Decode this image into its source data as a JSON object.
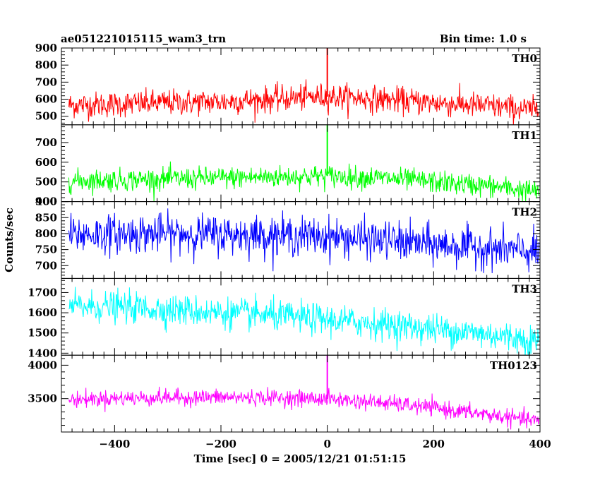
{
  "header": {
    "title": "ae051221015115_wam3_trn",
    "bin_time": "Bin time: 1.0 s"
  },
  "axes": {
    "xlabel": "Time [sec] 0 = 2005/12/21 01:51:15",
    "ylabel": "Counts/sec"
  },
  "colors": {
    "TH0": "#ff0000",
    "TH1": "#00ff00",
    "TH2": "#0000ff",
    "TH3": "#00ffff",
    "TH0123": "#ff00ff",
    "frame": "#000000"
  },
  "chart_data": {
    "type": "line",
    "shared_x": {
      "label": "Time [sec] 0 = 2005/12/21 01:51:15",
      "range": [
        -500,
        400
      ],
      "ticks": [
        -400,
        -200,
        0,
        200,
        400
      ],
      "tick_labels": [
        "−400",
        "−200",
        "0",
        "200",
        "400"
      ],
      "bin_seconds": 1.0
    },
    "panels": [
      {
        "name": "TH0",
        "ylim": [
          450,
          900
        ],
        "yticks": [
          500,
          600,
          700,
          800,
          900
        ],
        "trend": [
          [
            -500,
            565
          ],
          [
            -400,
            570
          ],
          [
            -300,
            580
          ],
          [
            -200,
            585
          ],
          [
            -100,
            600
          ],
          [
            -50,
            610
          ],
          [
            0,
            615
          ],
          [
            50,
            610
          ],
          [
            100,
            600
          ],
          [
            200,
            580
          ],
          [
            300,
            560
          ],
          [
            400,
            535
          ]
        ],
        "noise_std": 38,
        "spike": {
          "x": 0,
          "y": 900
        }
      },
      {
        "name": "TH1",
        "ylim": [
          400,
          790
        ],
        "yticks": [
          400,
          500,
          600,
          700
        ],
        "trend": [
          [
            -500,
            505
          ],
          [
            -400,
            510
          ],
          [
            -300,
            515
          ],
          [
            -200,
            520
          ],
          [
            -100,
            525
          ],
          [
            0,
            530
          ],
          [
            100,
            520
          ],
          [
            200,
            500
          ],
          [
            300,
            480
          ],
          [
            400,
            450
          ]
        ],
        "noise_std": 28,
        "spike": {
          "x": 0,
          "y": 790
        }
      },
      {
        "name": "TH2",
        "ylim": [
          660,
          900
        ],
        "yticks": [
          700,
          750,
          800,
          850,
          900
        ],
        "trend": [
          [
            -500,
            795
          ],
          [
            -400,
            800
          ],
          [
            -300,
            800
          ],
          [
            -200,
            798
          ],
          [
            -100,
            795
          ],
          [
            0,
            790
          ],
          [
            100,
            780
          ],
          [
            200,
            765
          ],
          [
            300,
            755
          ],
          [
            400,
            740
          ]
        ],
        "noise_std": 30,
        "spike": null
      },
      {
        "name": "TH3",
        "ylim": [
          1390,
          1770
        ],
        "yticks": [
          1400,
          1500,
          1600,
          1700
        ],
        "trend": [
          [
            -500,
            1630
          ],
          [
            -400,
            1630
          ],
          [
            -300,
            1615
          ],
          [
            -200,
            1600
          ],
          [
            -100,
            1585
          ],
          [
            0,
            1565
          ],
          [
            100,
            1545
          ],
          [
            200,
            1520
          ],
          [
            300,
            1495
          ],
          [
            400,
            1460
          ]
        ],
        "noise_std": 38,
        "spike": null
      },
      {
        "name": "TH0123",
        "ylim": [
          3000,
          4150
        ],
        "yticks": [
          3500,
          4000
        ],
        "trend": [
          [
            -500,
            3480
          ],
          [
            -400,
            3505
          ],
          [
            -300,
            3515
          ],
          [
            -200,
            3520
          ],
          [
            -100,
            3515
          ],
          [
            0,
            3495
          ],
          [
            100,
            3440
          ],
          [
            200,
            3360
          ],
          [
            300,
            3260
          ],
          [
            400,
            3160
          ]
        ],
        "noise_std": 60,
        "spike": {
          "x": 0,
          "y": 4150
        }
      }
    ]
  }
}
